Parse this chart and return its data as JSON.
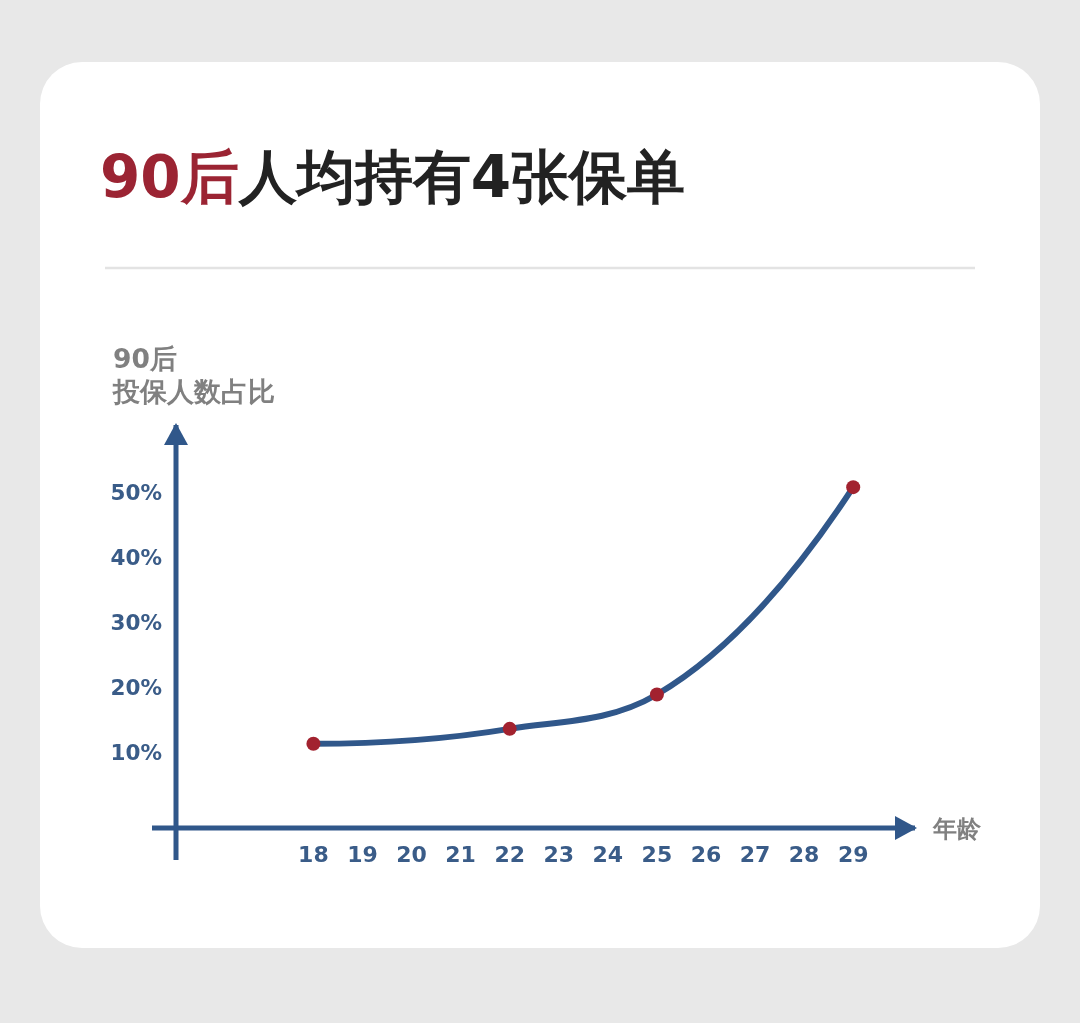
{
  "chart_data": {
    "type": "line",
    "title": "**90后**人均持有4张保单",
    "xlabel": "年龄",
    "ylabel": "90后投保人数占比",
    "series": [
      {
        "color": "#30578a",
        "colors": [
          "#a2222f",
          "#a2222f",
          "#a2222f",
          "#a2222f"
        ],
        "x": [
          18,
          22,
          25,
          29
        ],
        "values": [
          11.2,
          13.5,
          18.8,
          50.8
        ]
      }
    ],
    "marker": "circle",
    "xlim": [
      15.2,
      30.3
    ],
    "ylim": [
      -1.8,
      60.7
    ],
    "xticks": [
      18,
      19,
      20,
      21,
      22,
      23,
      24,
      25,
      26,
      27,
      28,
      29
    ],
    "yticks": [
      {
        "value": 10,
        "label": "10%"
      },
      {
        "value": 20,
        "label": "20%"
      },
      {
        "value": 30,
        "label": "30%"
      },
      {
        "value": 40,
        "label": "40%"
      },
      {
        "value": 50,
        "label": "50%"
      }
    ]
  }
}
